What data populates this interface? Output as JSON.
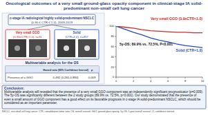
{
  "header": {
    "title": "Oncological outcomes of a very small ground-glass opacity component in clinical-stage IA solid-predominant non-small cell lung cancer"
  },
  "cohort": {
    "label": "c-stage IA radiological highly solid-predominant NSCLC",
    "criteria": "(0.90 ≤ CTR ≤ 1.0), 2009-2019",
    "groups": [
      {
        "name": "Very small GGO",
        "detail": "(0.90≤CTR<1.0), n=91",
        "color": "#d62828"
      },
      {
        "name": "Solid",
        "detail": "(CTR=1.0), n=857",
        "color": "#1f4fbf"
      }
    ]
  },
  "table": {
    "title": "Multivariable analysis for the OS",
    "header": [
      "Hazard ratio (95% Confidence Interval)",
      "p"
    ],
    "rows": [
      {
        "label": "Presence of a GGO",
        "cells": [
          "0.482 (0.261-0.890)",
          "0.009"
        ]
      }
    ]
  },
  "chart_data": {
    "type": "line",
    "x": [
      0,
      1,
      2,
      3,
      4,
      5,
      6,
      7,
      8,
      9,
      10
    ],
    "series": [
      {
        "name": "Very small GGO (0.9≤CTR<1.0)",
        "color": "#d62828",
        "values": [
          100,
          98,
          96,
          93,
          91,
          89.9,
          89,
          88,
          88,
          87,
          87
        ]
      },
      {
        "name": "Solid (CTR=1.0)",
        "color": "#1f4fbf",
        "values": [
          100,
          94,
          88,
          83,
          77,
          72.5,
          69,
          65,
          62,
          60,
          58
        ]
      }
    ],
    "xlim": [
      0,
      10
    ],
    "xticks": [
      0,
      2,
      4,
      6,
      8,
      10
    ],
    "ylim": [
      0,
      100
    ],
    "yticks": [
      0,
      20,
      40,
      60,
      80,
      100
    ],
    "grid": false,
    "annotations": [
      "5y-OS; 89.9% vs. 72.5%, P<0.001"
    ]
  },
  "conclusion": {
    "heading": "Conclusion:",
    "text": "Multivariable analysis will revealed that the presence of a very small GGO component was an independently significant prognosticator (p=0.009). The 5y-OS was significantly different between the 2 study groups (89.9% vs. 72.5%, p<0.001). Our study demonstrated that the presence of even a small amount of GGO component has a good effect on its favorable prognosis in c-stage IA solid-predominant NSCLC, which should be considered as an important parameter."
  },
  "footnote": "NSCLC, non-small cell lung cancer; CTR, consolidation tumor ratio; OS, overall survival; GGO, ground-glass opacity; 5y-OS, 5-year overall survival; CI, confidence interval"
}
